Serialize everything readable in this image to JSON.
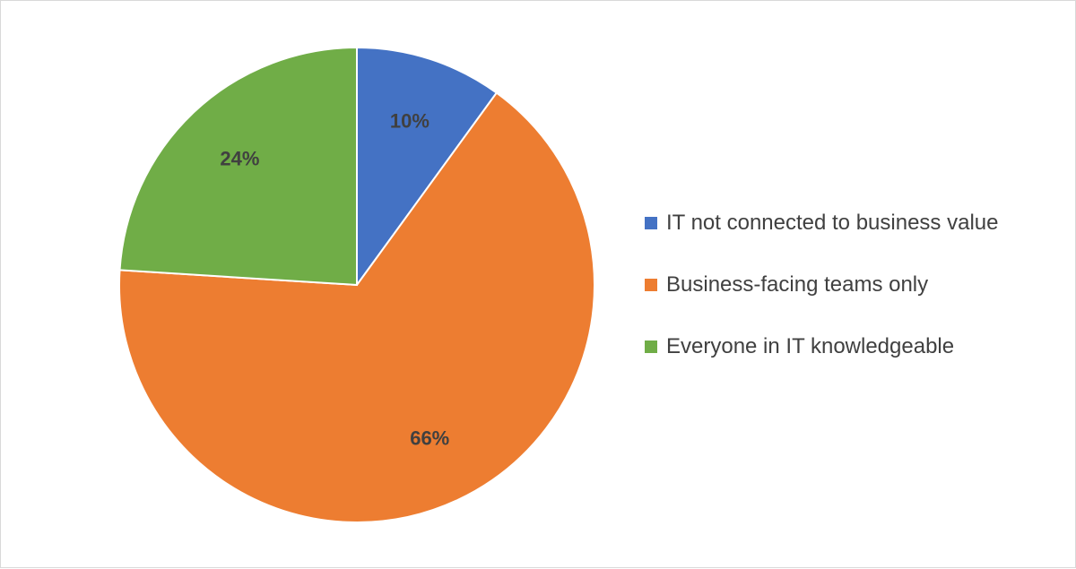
{
  "chart_data": {
    "type": "pie",
    "title": "",
    "start_angle_deg": 0,
    "direction": "clockwise",
    "legend_position": "right",
    "series": [
      {
        "name": "IT not connected to business value",
        "value": 10,
        "label": "10%",
        "color": "#4472C4"
      },
      {
        "name": "Business-facing teams only",
        "value": 66,
        "label": "66%",
        "color": "#ED7D31"
      },
      {
        "name": "Everyone in IT knowledgeable",
        "value": 24,
        "label": "24%",
        "color": "#70AD47"
      }
    ]
  }
}
